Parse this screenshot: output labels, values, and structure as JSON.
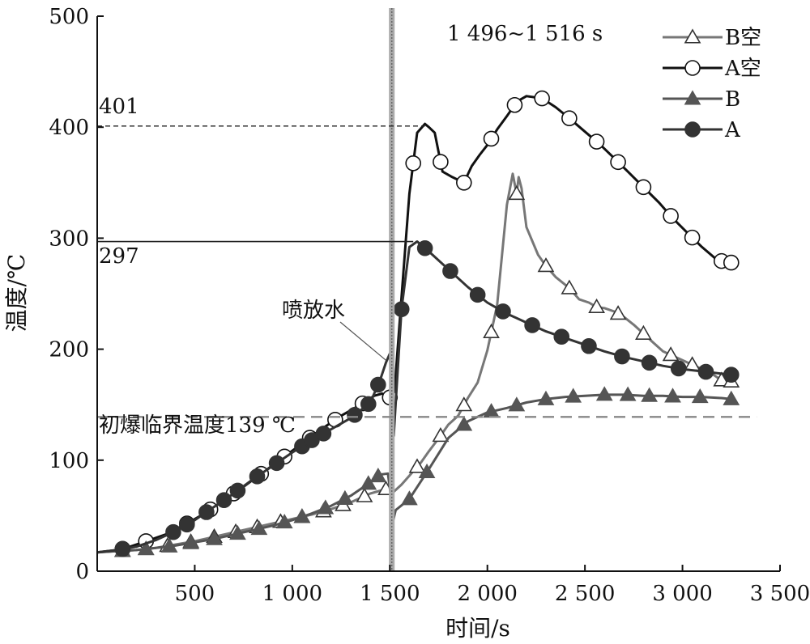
{
  "chart_data": {
    "type": "line",
    "xlabel": "时间/s",
    "ylabel": "温度/℃",
    "xlim": [
      0,
      3500
    ],
    "ylim": [
      0,
      500
    ],
    "x_ticks": [
      500,
      1000,
      1500,
      2000,
      2500,
      3000,
      3500
    ],
    "x_tick_labels": [
      "500",
      "1 000",
      "1 500",
      "2 000",
      "2 500",
      "3 000",
      "3 500"
    ],
    "y_ticks": [
      0,
      100,
      200,
      300,
      400,
      500
    ],
    "y_tick_labels": [
      "0",
      "100",
      "200",
      "300",
      "400",
      "500"
    ],
    "grid": false,
    "legend_position": "top-right",
    "annotations": {
      "time_window": "1 496~1 516 s",
      "water_spray": "喷放水",
      "critical_temp_label": "初爆临界温度139 ℃",
      "critical_temp": 139,
      "peak_A_air_label": "401",
      "peak_A_air": 401,
      "peak_A_label": "297",
      "peak_A": 297,
      "spray_time": 1510
    },
    "series": [
      {
        "name": "B空",
        "color": "#777777",
        "marker": "triangle-open",
        "x": [
          0,
          100,
          200,
          300,
          400,
          500,
          600,
          700,
          800,
          900,
          1000,
          1100,
          1200,
          1300,
          1400,
          1480,
          1510,
          1560,
          1600,
          1660,
          1700,
          1760,
          1800,
          1850,
          1900,
          1950,
          2000,
          2050,
          2100,
          2130,
          2150,
          2160,
          2175,
          2200,
          2260,
          2300,
          2350,
          2420,
          2470,
          2520,
          2560,
          2600,
          2650,
          2700,
          2750,
          2800,
          2850,
          2900,
          2950,
          3000,
          3050,
          3100,
          3150,
          3200,
          3250
        ],
        "y": [
          17,
          18,
          19,
          21,
          24,
          27,
          31,
          35,
          39,
          43,
          47,
          51,
          56,
          62,
          70,
          74,
          70,
          78,
          86,
          98,
          108,
          122,
          132,
          140,
          156,
          170,
          199,
          240,
          330,
          358,
          340,
          355,
          345,
          310,
          285,
          275,
          265,
          255,
          245,
          242,
          238,
          237,
          234,
          229,
          222,
          214,
          206,
          198,
          194,
          190,
          186,
          182,
          178,
          172,
          171
        ],
        "marker_x": [
          130,
          250,
          360,
          480,
          600,
          710,
          820,
          940,
          1050,
          1160,
          1260,
          1370,
          1480,
          1640,
          1760,
          1880,
          2020,
          2150,
          2300,
          2420,
          2560,
          2670,
          2800,
          2940,
          3050,
          3200,
          3250
        ]
      },
      {
        "name": "A空",
        "color": "#111111",
        "marker": "circle-open",
        "x": [
          0,
          100,
          150,
          250,
          350,
          450,
          550,
          650,
          750,
          850,
          950,
          1050,
          1150,
          1250,
          1350,
          1420,
          1460,
          1490,
          1510,
          1520,
          1540,
          1570,
          1600,
          1640,
          1680,
          1700,
          1730,
          1770,
          1820,
          1880,
          1920,
          1960,
          2000,
          2050,
          2100,
          2140,
          2170,
          2200,
          2280,
          2350,
          2420,
          2500,
          2580,
          2650,
          2720,
          2800,
          2880,
          2950,
          3030,
          3100,
          3180,
          3250
        ],
        "y": [
          17,
          19,
          21,
          27,
          33,
          42,
          52,
          64,
          76,
          89,
          102,
          115,
          128,
          140,
          150,
          158,
          160,
          158,
          155,
          152,
          200,
          270,
          340,
          395,
          403,
          400,
          395,
          360,
          355,
          350,
          365,
          375,
          384,
          398,
          410,
          420,
          425,
          428,
          426,
          418,
          408,
          396,
          384,
          372,
          360,
          346,
          332,
          318,
          304,
          292,
          280,
          278
        ],
        "marker_x": [
          130,
          250,
          460,
          580,
          700,
          840,
          960,
          1090,
          1220,
          1360,
          1500,
          1620,
          1760,
          1880,
          2020,
          2140,
          2280,
          2420,
          2560,
          2670,
          2800,
          2940,
          3050,
          3200,
          3250
        ]
      },
      {
        "name": "B",
        "color": "#555555",
        "marker": "triangle-filled",
        "x": [
          0,
          100,
          200,
          300,
          400,
          500,
          600,
          700,
          800,
          900,
          1000,
          1100,
          1200,
          1300,
          1400,
          1450,
          1490,
          1505,
          1515,
          1530,
          1600,
          1700,
          1800,
          1900,
          2000,
          2100,
          2200,
          2300,
          2400,
          2500,
          2600,
          2700,
          2800,
          2900,
          3000,
          3100,
          3200,
          3250
        ],
        "y": [
          17,
          18,
          19,
          21,
          23,
          26,
          29,
          33,
          37,
          41,
          46,
          52,
          59,
          68,
          80,
          87,
          88,
          68,
          44,
          55,
          65,
          92,
          120,
          135,
          143,
          147,
          152,
          155,
          157,
          158,
          159,
          159,
          158,
          158,
          157,
          157,
          156,
          155
        ],
        "marker_x": [
          130,
          250,
          370,
          480,
          600,
          720,
          830,
          960,
          1050,
          1170,
          1270,
          1390,
          1440,
          1600,
          1690,
          1880,
          2020,
          2150,
          2300,
          2440,
          2600,
          2720,
          2830,
          2950,
          3090,
          3250
        ]
      },
      {
        "name": "A",
        "color": "#333333",
        "marker": "circle-filled",
        "x": [
          0,
          100,
          200,
          300,
          400,
          500,
          600,
          700,
          800,
          900,
          1000,
          1100,
          1200,
          1300,
          1400,
          1450,
          1480,
          1500,
          1510,
          1520,
          1540,
          1560,
          1600,
          1640,
          1700,
          1800,
          1900,
          2000,
          2100,
          2200,
          2300,
          2400,
          2500,
          2600,
          2700,
          2800,
          2900,
          3000,
          3100,
          3200,
          3250
        ],
        "y": [
          17,
          19,
          22,
          28,
          36,
          46,
          58,
          70,
          83,
          95,
          107,
          118,
          128,
          138,
          152,
          172,
          188,
          196,
          160,
          122,
          180,
          236,
          292,
          297,
          288,
          272,
          256,
          242,
          232,
          224,
          216,
          210,
          204,
          198,
          193,
          189,
          185,
          182,
          180,
          178,
          177
        ],
        "marker_x": [
          130,
          390,
          460,
          560,
          650,
          720,
          820,
          920,
          1050,
          1100,
          1160,
          1320,
          1390,
          1440,
          1560,
          1680,
          1810,
          1950,
          2080,
          2230,
          2380,
          2520,
          2690,
          2830,
          2980,
          3120,
          3250
        ]
      }
    ]
  }
}
